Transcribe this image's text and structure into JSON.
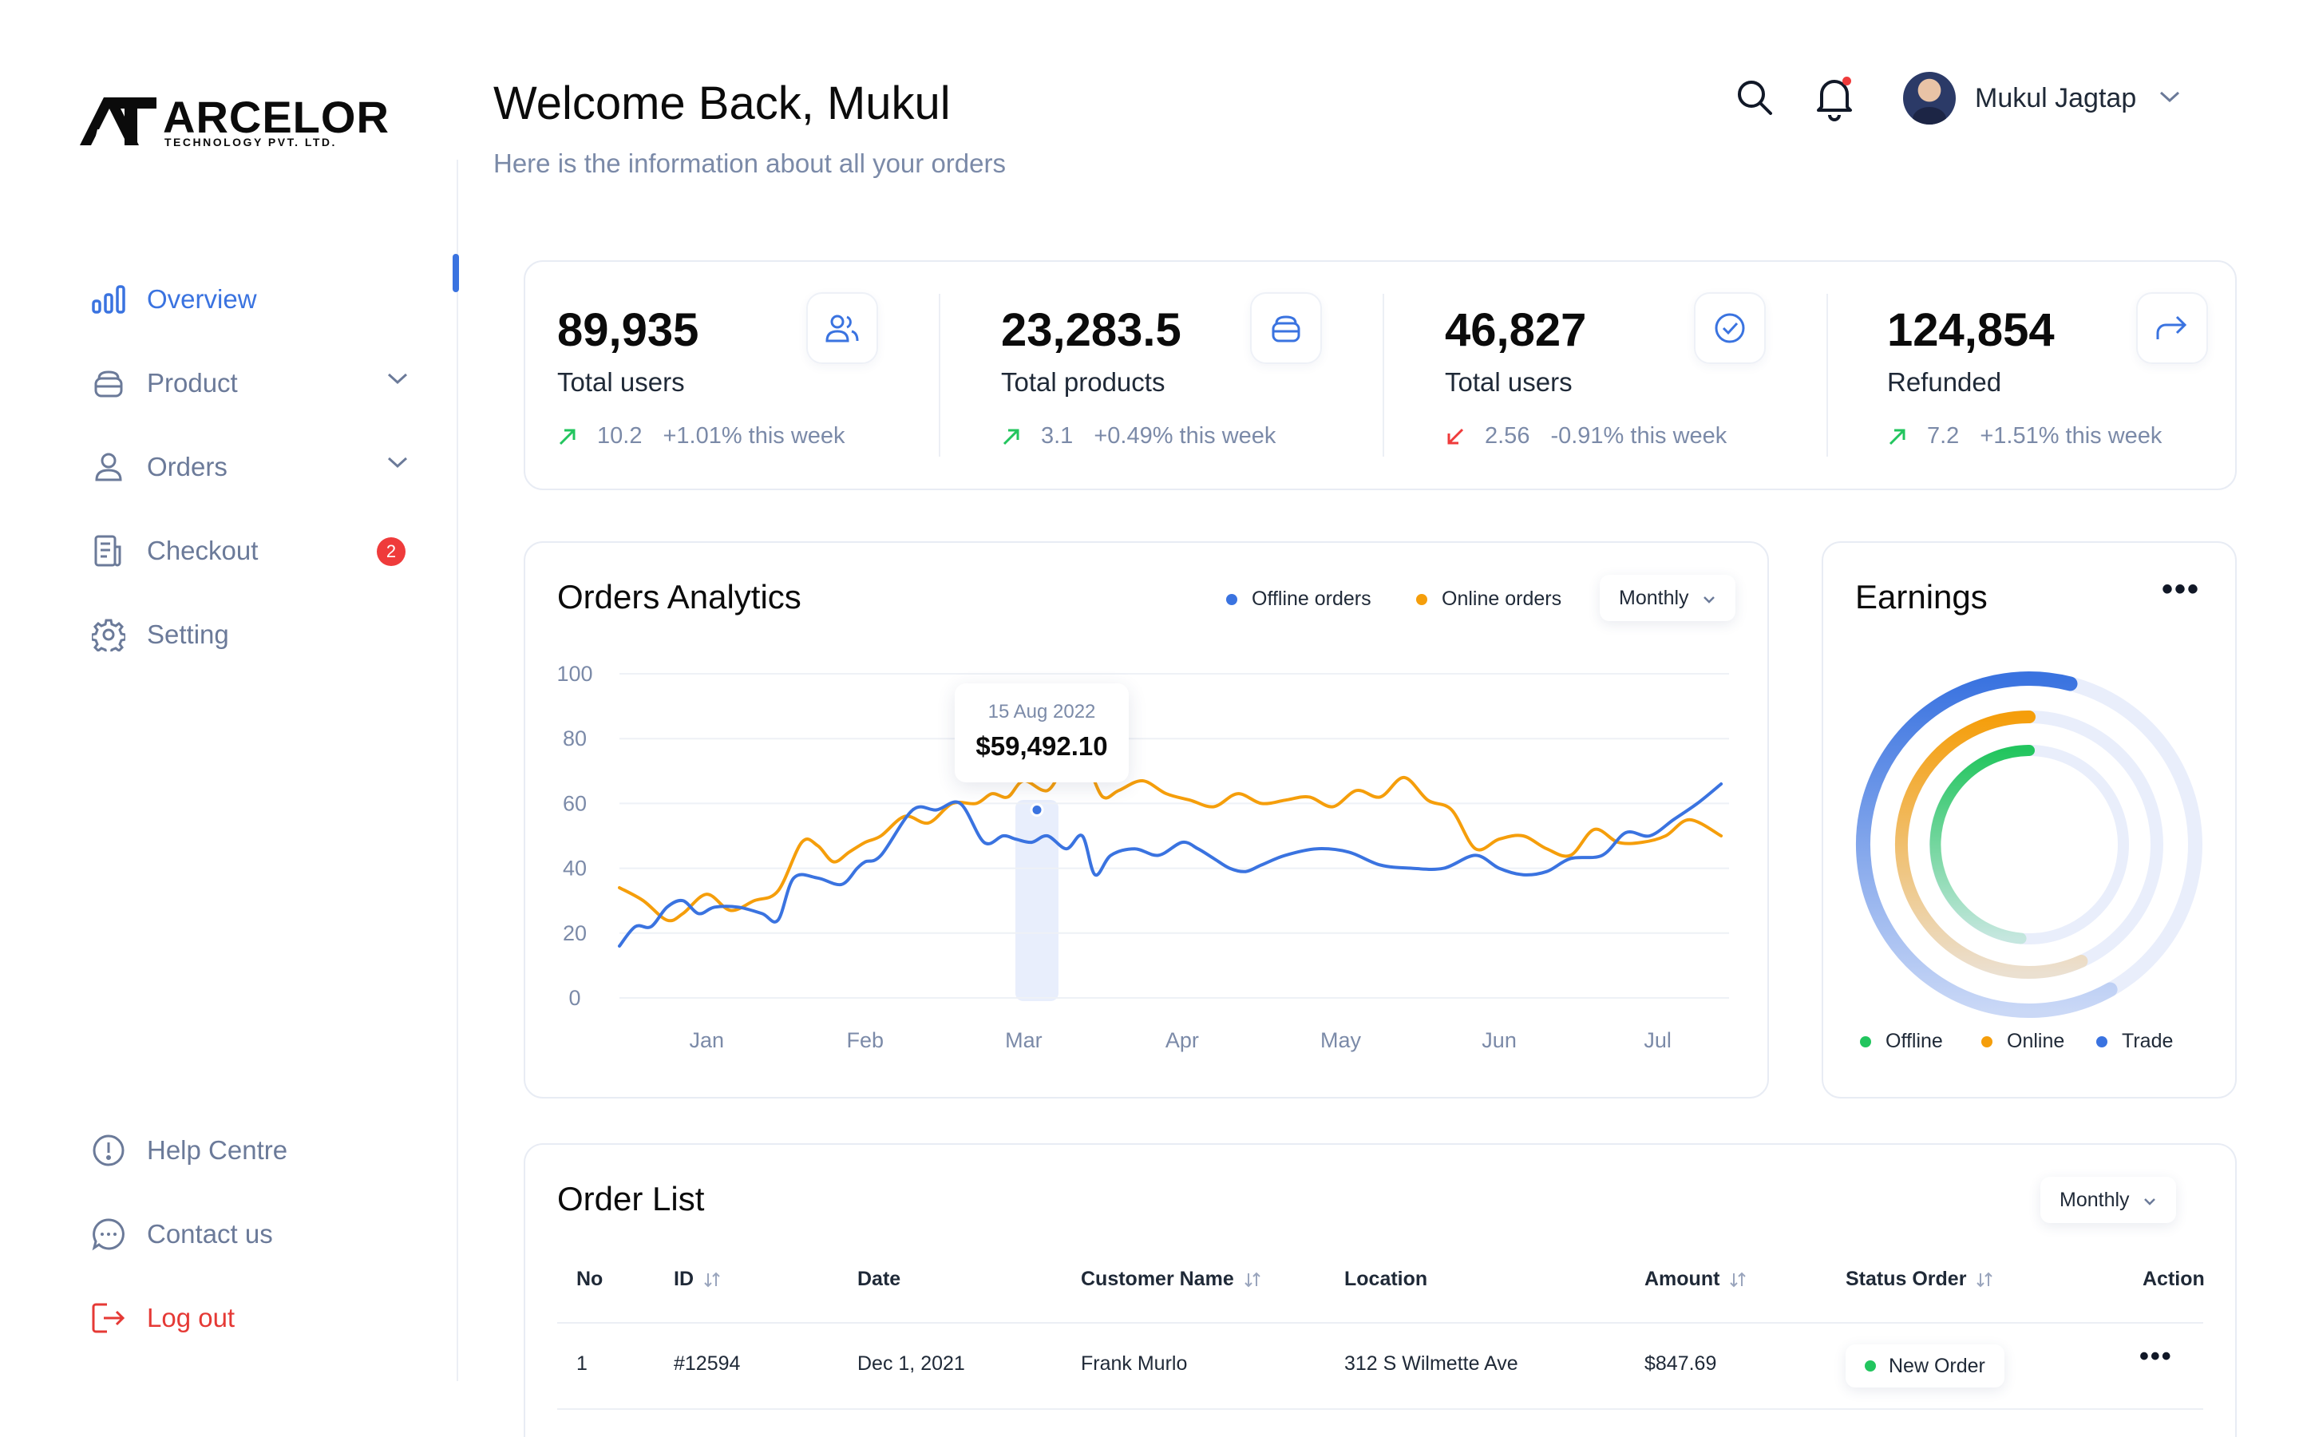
{
  "brand": {
    "name": "ARCELOR",
    "tagline": "Technology Pvt. Ltd."
  },
  "sidebar": {
    "items": [
      {
        "label": "Overview",
        "icon": "bar-chart-icon"
      },
      {
        "label": "Product",
        "icon": "box-icon"
      },
      {
        "label": "Orders",
        "icon": "user-icon"
      },
      {
        "label": "Checkout",
        "icon": "receipt-icon",
        "badge": "2"
      },
      {
        "label": "Setting",
        "icon": "gear-icon"
      }
    ],
    "bottom": [
      {
        "label": "Help Centre",
        "icon": "help-icon"
      },
      {
        "label": "Contact us",
        "icon": "chat-icon"
      },
      {
        "label": "Log out",
        "icon": "logout-icon"
      }
    ]
  },
  "header": {
    "title": "Welcome Back, Mukul",
    "subtitle": "Here is the information about all your orders",
    "user_name": "Mukul Jagtap"
  },
  "stats": [
    {
      "value": "89,935",
      "label": "Total users",
      "trend_value": "10.2",
      "trend_pct": "+1.01% this week",
      "direction": "up",
      "icon": "users-icon"
    },
    {
      "value": "23,283.5",
      "label": "Total products",
      "trend_value": "3.1",
      "trend_pct": "+0.49% this week",
      "direction": "up",
      "icon": "box-icon"
    },
    {
      "value": "46,827",
      "label": "Total users",
      "trend_value": "2.56",
      "trend_pct": "-0.91% this week",
      "direction": "down",
      "icon": "check-circle-icon"
    },
    {
      "value": "124,854",
      "label": "Refunded",
      "trend_value": "7.2",
      "trend_pct": "+1.51% this week",
      "direction": "up",
      "icon": "share-icon"
    }
  ],
  "colors": {
    "accent": "#3a73e0",
    "offline": "#3a73e0",
    "online": "#f59e0b",
    "trade_green": "#22c55e",
    "danger": "#ef3b3b",
    "up": "#22c55e",
    "down": "#ef3b3b"
  },
  "analytics": {
    "title": "Orders Analytics",
    "legend": [
      "Offline orders",
      "Online orders"
    ],
    "period": "Monthly",
    "tooltip": {
      "date": "15 Aug 2022",
      "value": "$59,492.10"
    }
  },
  "chart_data": {
    "type": "line",
    "title": "Orders Analytics",
    "categories": [
      "Jan",
      "Feb",
      "Mar",
      "Apr",
      "May",
      "Jun",
      "Jul"
    ],
    "yticks": [
      0,
      20,
      40,
      60,
      80,
      100
    ],
    "ylim": [
      0,
      100
    ],
    "xlim": [
      0,
      7
    ],
    "grid": true,
    "series": [
      {
        "name": "Offline orders",
        "color": "#3a73e0",
        "x": [
          0,
          0.1,
          0.2,
          0.3,
          0.4,
          0.5,
          0.6,
          0.75,
          0.9,
          1.0,
          1.1,
          1.25,
          1.4,
          1.5,
          1.55,
          1.65,
          1.85,
          2.0,
          2.15,
          2.3,
          2.42,
          2.5,
          2.6,
          2.7,
          2.82,
          2.92,
          3.0,
          3.1,
          3.25,
          3.4,
          3.55,
          3.65,
          3.75,
          3.85,
          3.95,
          4.05,
          4.2,
          4.4,
          4.6,
          4.8,
          5.0,
          5.2,
          5.4,
          5.55,
          5.7,
          5.85,
          6.0,
          6.2,
          6.35,
          6.5,
          6.65,
          6.8,
          6.95
        ],
        "values": [
          16,
          22,
          22,
          28,
          30,
          26,
          28,
          28,
          26,
          24,
          37,
          37,
          35,
          40,
          42,
          44,
          58,
          58,
          60,
          48,
          50,
          49,
          48,
          50,
          46,
          50,
          38,
          44,
          46,
          44,
          48,
          46,
          43,
          40,
          39,
          41,
          44,
          46,
          45,
          41,
          40,
          40,
          44,
          40,
          38,
          39,
          43,
          44,
          51,
          50,
          55,
          60,
          66
        ]
      },
      {
        "name": "Online orders",
        "color": "#f59e0b",
        "x": [
          0,
          0.15,
          0.3,
          0.4,
          0.55,
          0.7,
          0.85,
          1.0,
          1.15,
          1.25,
          1.35,
          1.45,
          1.55,
          1.65,
          1.8,
          1.95,
          2.1,
          2.25,
          2.35,
          2.45,
          2.55,
          2.7,
          2.82,
          2.95,
          3.05,
          3.15,
          3.3,
          3.45,
          3.6,
          3.75,
          3.9,
          4.05,
          4.2,
          4.35,
          4.5,
          4.65,
          4.8,
          4.95,
          5.1,
          5.25,
          5.4,
          5.55,
          5.7,
          5.85,
          6.0,
          6.15,
          6.3,
          6.45,
          6.6,
          6.75,
          6.95
        ],
        "values": [
          34,
          30,
          24,
          26,
          32,
          27,
          30,
          33,
          48,
          47,
          42,
          45,
          48,
          50,
          56,
          54,
          60,
          60,
          63,
          62,
          67,
          64,
          72,
          71,
          62,
          64,
          67,
          63,
          61,
          59,
          63,
          60,
          61,
          62,
          59,
          64,
          62,
          68,
          61,
          58,
          46,
          49,
          50,
          46,
          44,
          52,
          48,
          48,
          50,
          55,
          50
        ]
      }
    ]
  },
  "earnings": {
    "title": "Earnings",
    "legend": [
      "Offline",
      "Online",
      "Trade"
    ],
    "rings": [
      {
        "name": "Trade",
        "fraction": 0.46,
        "color": "#3a73e0"
      },
      {
        "name": "Online",
        "fraction": 0.42,
        "color": "#f59e0b"
      },
      {
        "name": "Offline",
        "fraction": 0.36,
        "color": "#22c55e"
      }
    ]
  },
  "order_list": {
    "title": "Order List",
    "period": "Monthly",
    "columns": [
      "No",
      "ID",
      "Date",
      "Customer Name",
      "Location",
      "Amount",
      "Status Order",
      "Action"
    ],
    "rows": [
      {
        "no": "1",
        "id": "#12594",
        "date": "Dec 1, 2021",
        "customer": "Frank Murlo",
        "location": "312 S Wilmette Ave",
        "amount": "$847.69",
        "status": "New Order"
      }
    ]
  }
}
